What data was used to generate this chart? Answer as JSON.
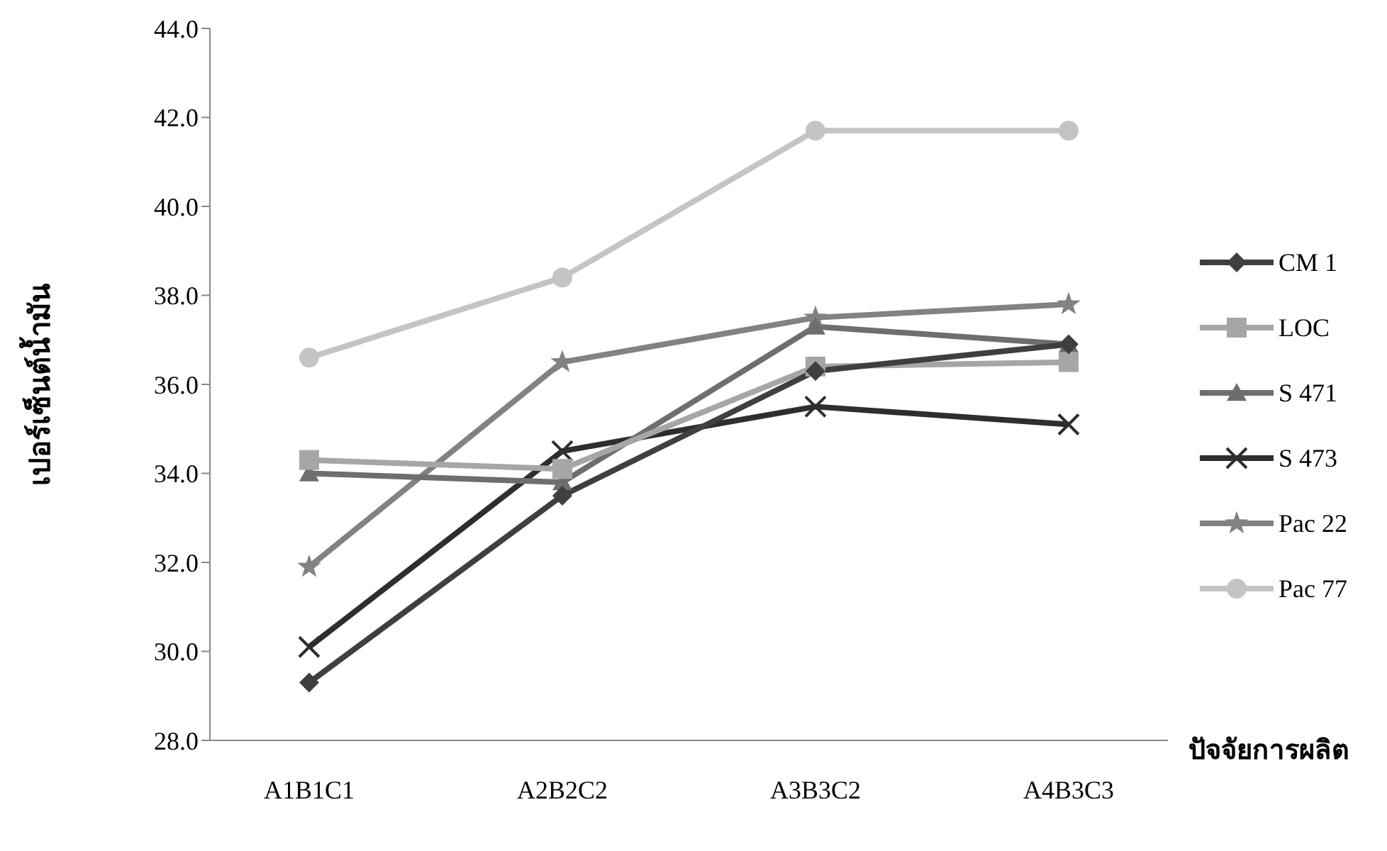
{
  "chart_data": {
    "type": "line",
    "xlabel": "ปัจจัยการผลิต",
    "ylabel": "เปอร์เซ็นต์น้ำมัน",
    "categories": [
      "A1B1C1",
      "A2B2C2",
      "A3B3C2",
      "A4B3C3"
    ],
    "ylim": [
      28,
      44
    ],
    "yticks": [
      {
        "value": 28,
        "label": "28.0"
      },
      {
        "value": 30,
        "label": "30.0"
      },
      {
        "value": 32,
        "label": "32.0"
      },
      {
        "value": 34,
        "label": "34.0"
      },
      {
        "value": 36,
        "label": "36.0"
      },
      {
        "value": 38,
        "label": "38.0"
      },
      {
        "value": 40,
        "label": "40.0"
      },
      {
        "value": 42,
        "label": "42.0"
      },
      {
        "value": 44,
        "label": "44.0"
      }
    ],
    "legend": "right",
    "grid": false,
    "series": [
      {
        "name": "CM 1",
        "color": "#3f3f3f",
        "marker": "diamond",
        "values": [
          29.3,
          33.5,
          36.3,
          36.9
        ]
      },
      {
        "name": "LOC",
        "color": "#a6a6a6",
        "marker": "square",
        "values": [
          34.3,
          34.1,
          36.4,
          36.5
        ]
      },
      {
        "name": "S 471",
        "color": "#6e6e6e",
        "marker": "triangle",
        "values": [
          34.0,
          33.8,
          37.3,
          36.9
        ]
      },
      {
        "name": "S 473",
        "color": "#2e2e2e",
        "marker": "cross",
        "values": [
          30.1,
          34.5,
          35.5,
          35.1
        ]
      },
      {
        "name": "Pac 22",
        "color": "#828282",
        "marker": "star",
        "values": [
          31.9,
          36.5,
          37.5,
          37.8
        ]
      },
      {
        "name": "Pac 77",
        "color": "#c4c4c4",
        "marker": "circle",
        "values": [
          36.6,
          38.4,
          41.7,
          41.7
        ]
      }
    ]
  }
}
